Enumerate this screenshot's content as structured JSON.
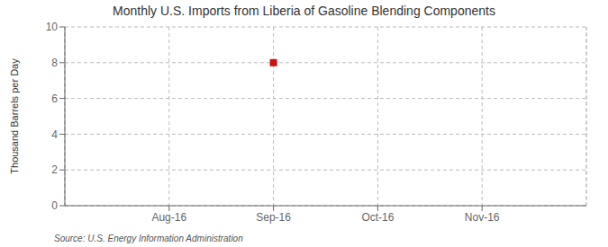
{
  "chart_data": {
    "type": "scatter",
    "title": "Monthly U.S. Imports from Liberia of Gasoline Blending Components",
    "y_label": "Thousand Barrels per Day",
    "annotations": [
      "Source: U.S. Energy Information Administration"
    ],
    "categories": [
      "Aug-16",
      "Sep-16",
      "Oct-16",
      "Nov-16"
    ],
    "values": [
      null,
      8,
      null,
      null
    ],
    "color": "#cc1111",
    "marker": "square",
    "ylim": [
      0,
      10
    ],
    "yticks": [
      0,
      2,
      4,
      6,
      8,
      10
    ],
    "grid": true
  }
}
